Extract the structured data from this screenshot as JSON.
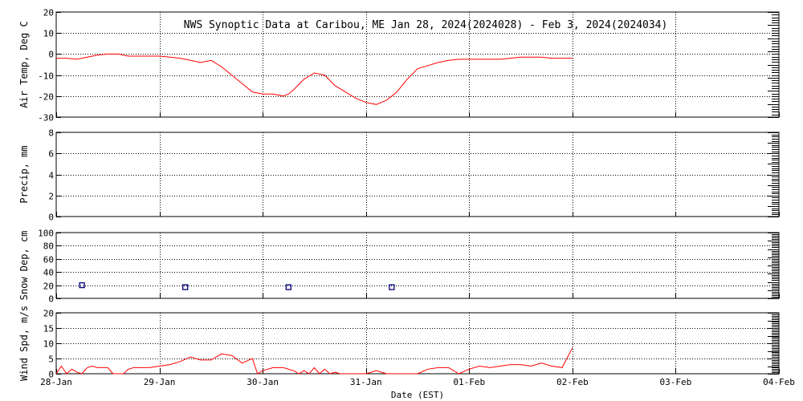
{
  "chart_data": [
    {
      "type": "line",
      "title": "NWS Synoptic Data at Caribou, ME   Jan 28, 2024(2024028) - Feb  3, 2024(2024034)",
      "ylabel": "Air Temp, Deg C",
      "ylim": [
        -30,
        20
      ],
      "yticks": [
        -30,
        -20,
        -10,
        0,
        10,
        20
      ],
      "color": "#ff0000",
      "x": [
        0,
        0.1,
        0.2,
        0.3,
        0.4,
        0.5,
        0.6,
        0.7,
        0.8,
        0.9,
        1.0,
        1.1,
        1.2,
        1.3,
        1.4,
        1.5,
        1.6,
        1.7,
        1.8,
        1.9,
        2.0,
        2.1,
        2.2,
        2.25,
        2.3,
        2.4,
        2.5,
        2.6,
        2.7,
        2.8,
        2.9,
        3.0,
        3.1,
        3.2,
        3.25,
        3.3,
        3.4,
        3.5,
        3.6,
        3.7,
        3.8,
        3.9,
        4.0,
        4.1,
        4.2,
        4.3,
        4.4,
        4.5,
        4.6,
        4.7,
        4.8,
        4.9,
        5.0
      ],
      "y": [
        -2,
        -2,
        -2.5,
        -1.5,
        -0.5,
        0,
        0,
        -1,
        -1,
        -1,
        -1,
        -1.5,
        -2,
        -3,
        -4,
        -3,
        -6,
        -10,
        -14,
        -18,
        -19,
        -19,
        -20,
        -19,
        -17,
        -12,
        -9,
        -10,
        -15,
        -18,
        -21,
        -23,
        -24,
        -22,
        -20,
        -18,
        -12,
        -7,
        -5.5,
        -4,
        -3,
        -2.5,
        -2.5,
        -2.5,
        -2.5,
        -2.5,
        -2,
        -1.5,
        -1.5,
        -1.5,
        -2,
        -2,
        -2
      ]
    },
    {
      "type": "line",
      "ylabel": "Precip, mm",
      "ylim": [
        0,
        8
      ],
      "yticks": [
        0,
        2,
        4,
        6,
        8
      ],
      "x": [],
      "y": []
    },
    {
      "type": "scatter",
      "ylabel": "Snow Dep, cm",
      "ylim": [
        0,
        100
      ],
      "yticks": [
        0,
        20,
        40,
        60,
        80,
        100
      ],
      "color": "#000080",
      "x": [
        0.25,
        1.25,
        2.25,
        3.25
      ],
      "y": [
        20,
        17,
        17,
        17
      ]
    },
    {
      "type": "line",
      "ylabel": "Wind Spd, m/s",
      "ylim": [
        0,
        20
      ],
      "yticks": [
        0,
        5,
        10,
        15,
        20
      ],
      "color": "#ff0000",
      "xlabel": "Date (EST)",
      "x": [
        0,
        0.05,
        0.1,
        0.15,
        0.2,
        0.25,
        0.3,
        0.35,
        0.4,
        0.5,
        0.55,
        0.6,
        0.65,
        0.7,
        0.75,
        0.8,
        0.9,
        1.0,
        1.1,
        1.2,
        1.3,
        1.4,
        1.5,
        1.6,
        1.7,
        1.8,
        1.9,
        1.95,
        2.0,
        2.1,
        2.2,
        2.3,
        2.35,
        2.4,
        2.45,
        2.5,
        2.55,
        2.6,
        2.65,
        2.7,
        2.75,
        2.8,
        2.9,
        3.0,
        3.1,
        3.2,
        3.3,
        3.4,
        3.5,
        3.6,
        3.7,
        3.8,
        3.9,
        4.0,
        4.1,
        4.2,
        4.3,
        4.4,
        4.5,
        4.6,
        4.7,
        4.8,
        4.9,
        5.0
      ],
      "y": [
        0,
        2.5,
        0,
        1.5,
        0.5,
        0,
        2,
        2.5,
        2,
        2,
        0,
        0,
        0,
        1.5,
        2,
        2,
        2,
        2.5,
        3,
        4,
        5.5,
        4.5,
        4.5,
        6.5,
        6,
        3.5,
        5,
        0,
        1,
        2,
        2,
        1,
        0,
        1,
        0,
        2,
        0,
        1.5,
        0,
        0.5,
        0,
        0,
        0,
        0,
        1,
        0,
        0,
        0,
        0,
        1.5,
        2,
        2,
        0,
        1.5,
        2.5,
        2,
        2.5,
        3,
        3,
        2.5,
        3.5,
        2.5,
        2,
        8.5
      ]
    }
  ],
  "x_axis": {
    "ticks": [
      "28-Jan",
      "29-Jan",
      "30-Jan",
      "31-Jan",
      "01-Feb",
      "02-Feb",
      "03-Feb",
      "04-Feb"
    ],
    "xlim": [
      0,
      7
    ]
  }
}
